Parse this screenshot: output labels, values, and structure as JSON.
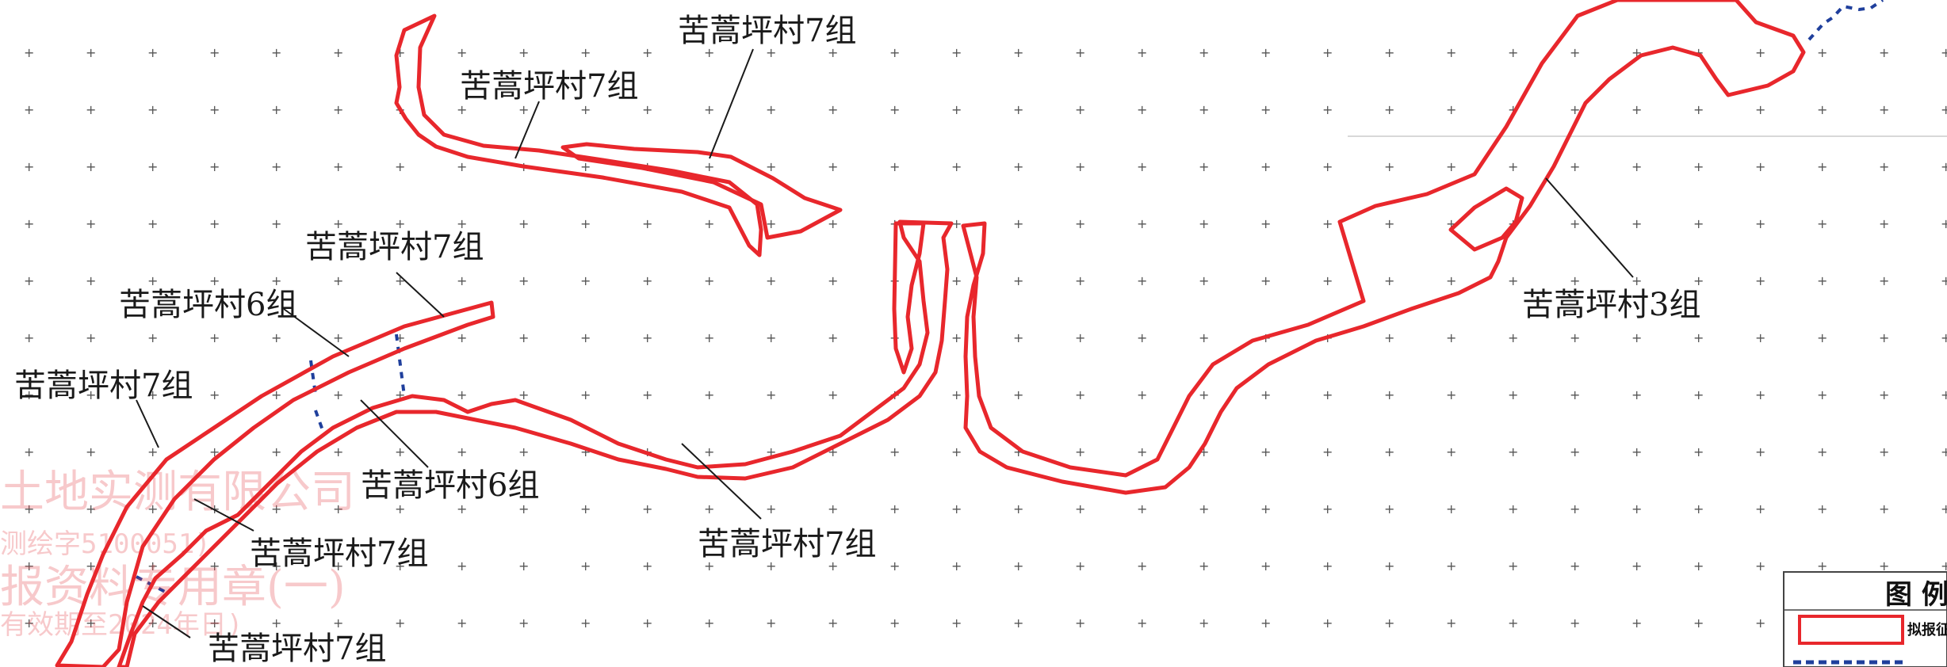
{
  "labels": {
    "l1": "苦蒿坪村7组",
    "l2": "苦蒿坪村7组",
    "l3": "苦蒿坪村7组",
    "l4": "苦蒿坪村6组",
    "l5": "苦蒿坪村7组",
    "l6": "苦蒿坪村6组",
    "l7": "苦蒿坪村7组",
    "l8": "苦蒿坪村7组",
    "l9": "苦蒿坪村7组",
    "l10": "苦蒿坪村3组"
  },
  "stamp": {
    "line1": "土地实测有限公司",
    "line2": "测绘字5100051)",
    "line3": "报资料专用章(一)",
    "line4": "有效期至2024年日)"
  },
  "legend": {
    "title": "图 例",
    "item": "拟报征"
  },
  "colors": {
    "parcel": "#e8272c",
    "boundary": "#1f3f9c",
    "stamp": "#e23d45"
  }
}
